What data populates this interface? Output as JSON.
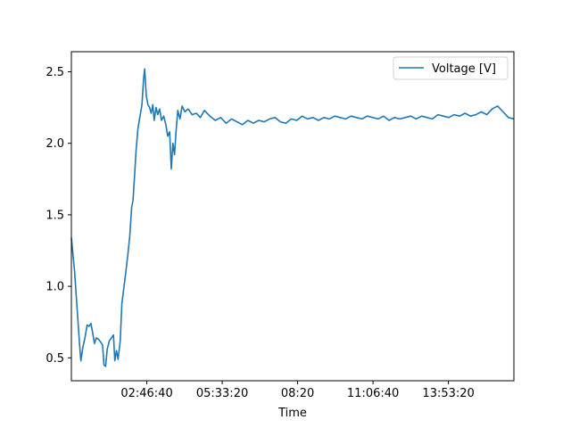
{
  "chart_data": {
    "type": "line",
    "xlabel": "Time",
    "ylabel": "",
    "x_tick_labels": [
      "02:46:40",
      "05:33:20",
      "08:20",
      "11:06:40",
      "13:53:20"
    ],
    "y_tick_labels": [
      "0.5",
      "1.0",
      "1.5",
      "2.0",
      "2.5"
    ],
    "y_ticks": [
      0.5,
      1.0,
      1.5,
      2.0,
      2.5
    ],
    "xlim_hours": [
      0,
      16.3
    ],
    "ylim": [
      0.34,
      2.64
    ],
    "grid": false,
    "legend_position": "top-right",
    "series": [
      {
        "name": "Voltage [V]",
        "color": "#1f77b4",
        "points": [
          [
            0.0,
            1.34
          ],
          [
            0.12,
            1.1
          ],
          [
            0.22,
            0.82
          ],
          [
            0.3,
            0.6
          ],
          [
            0.35,
            0.48
          ],
          [
            0.42,
            0.57
          ],
          [
            0.5,
            0.64
          ],
          [
            0.58,
            0.73
          ],
          [
            0.65,
            0.72
          ],
          [
            0.72,
            0.74
          ],
          [
            0.78,
            0.68
          ],
          [
            0.85,
            0.6
          ],
          [
            0.92,
            0.64
          ],
          [
            1.0,
            0.63
          ],
          [
            1.08,
            0.61
          ],
          [
            1.15,
            0.59
          ],
          [
            1.2,
            0.45
          ],
          [
            1.26,
            0.44
          ],
          [
            1.32,
            0.56
          ],
          [
            1.4,
            0.62
          ],
          [
            1.48,
            0.64
          ],
          [
            1.55,
            0.66
          ],
          [
            1.6,
            0.48
          ],
          [
            1.66,
            0.55
          ],
          [
            1.72,
            0.49
          ],
          [
            1.8,
            0.62
          ],
          [
            1.86,
            0.88
          ],
          [
            1.92,
            0.97
          ],
          [
            2.0,
            1.09
          ],
          [
            2.08,
            1.22
          ],
          [
            2.15,
            1.35
          ],
          [
            2.22,
            1.55
          ],
          [
            2.27,
            1.6
          ],
          [
            2.32,
            1.75
          ],
          [
            2.38,
            1.94
          ],
          [
            2.45,
            2.1
          ],
          [
            2.52,
            2.18
          ],
          [
            2.6,
            2.27
          ],
          [
            2.66,
            2.45
          ],
          [
            2.7,
            2.52
          ],
          [
            2.76,
            2.33
          ],
          [
            2.82,
            2.27
          ],
          [
            2.88,
            2.25
          ],
          [
            2.94,
            2.21
          ],
          [
            3.0,
            2.27
          ],
          [
            3.05,
            2.16
          ],
          [
            3.12,
            2.25
          ],
          [
            3.18,
            2.2
          ],
          [
            3.25,
            2.24
          ],
          [
            3.32,
            2.16
          ],
          [
            3.4,
            2.19
          ],
          [
            3.48,
            2.13
          ],
          [
            3.55,
            2.05
          ],
          [
            3.62,
            2.08
          ],
          [
            3.68,
            1.82
          ],
          [
            3.74,
            2.0
          ],
          [
            3.8,
            1.92
          ],
          [
            3.85,
            2.07
          ],
          [
            3.92,
            2.23
          ],
          [
            4.0,
            2.17
          ],
          [
            4.08,
            2.26
          ],
          [
            4.18,
            2.22
          ],
          [
            4.3,
            2.24
          ],
          [
            4.45,
            2.2
          ],
          [
            4.6,
            2.21
          ],
          [
            4.75,
            2.18
          ],
          [
            4.9,
            2.23
          ],
          [
            5.1,
            2.19
          ],
          [
            5.3,
            2.16
          ],
          [
            5.5,
            2.18
          ],
          [
            5.7,
            2.14
          ],
          [
            5.9,
            2.17
          ],
          [
            6.1,
            2.15
          ],
          [
            6.3,
            2.13
          ],
          [
            6.5,
            2.16
          ],
          [
            6.7,
            2.14
          ],
          [
            6.9,
            2.16
          ],
          [
            7.1,
            2.15
          ],
          [
            7.3,
            2.17
          ],
          [
            7.5,
            2.18
          ],
          [
            7.7,
            2.15
          ],
          [
            7.9,
            2.14
          ],
          [
            8.1,
            2.17
          ],
          [
            8.3,
            2.16
          ],
          [
            8.5,
            2.19
          ],
          [
            8.7,
            2.17
          ],
          [
            8.9,
            2.18
          ],
          [
            9.1,
            2.16
          ],
          [
            9.3,
            2.18
          ],
          [
            9.5,
            2.17
          ],
          [
            9.7,
            2.19
          ],
          [
            9.9,
            2.18
          ],
          [
            10.1,
            2.17
          ],
          [
            10.3,
            2.19
          ],
          [
            10.5,
            2.18
          ],
          [
            10.7,
            2.17
          ],
          [
            10.9,
            2.19
          ],
          [
            11.1,
            2.18
          ],
          [
            11.3,
            2.17
          ],
          [
            11.5,
            2.19
          ],
          [
            11.7,
            2.16
          ],
          [
            11.9,
            2.18
          ],
          [
            12.1,
            2.17
          ],
          [
            12.3,
            2.18
          ],
          [
            12.5,
            2.19
          ],
          [
            12.7,
            2.17
          ],
          [
            12.9,
            2.19
          ],
          [
            13.1,
            2.18
          ],
          [
            13.3,
            2.17
          ],
          [
            13.5,
            2.2
          ],
          [
            13.7,
            2.19
          ],
          [
            13.9,
            2.18
          ],
          [
            14.1,
            2.2
          ],
          [
            14.3,
            2.19
          ],
          [
            14.5,
            2.21
          ],
          [
            14.7,
            2.19
          ],
          [
            14.9,
            2.2
          ],
          [
            15.1,
            2.22
          ],
          [
            15.3,
            2.2
          ],
          [
            15.5,
            2.24
          ],
          [
            15.7,
            2.26
          ],
          [
            15.9,
            2.22
          ],
          [
            16.1,
            2.18
          ],
          [
            16.3,
            2.17
          ]
        ]
      }
    ]
  }
}
